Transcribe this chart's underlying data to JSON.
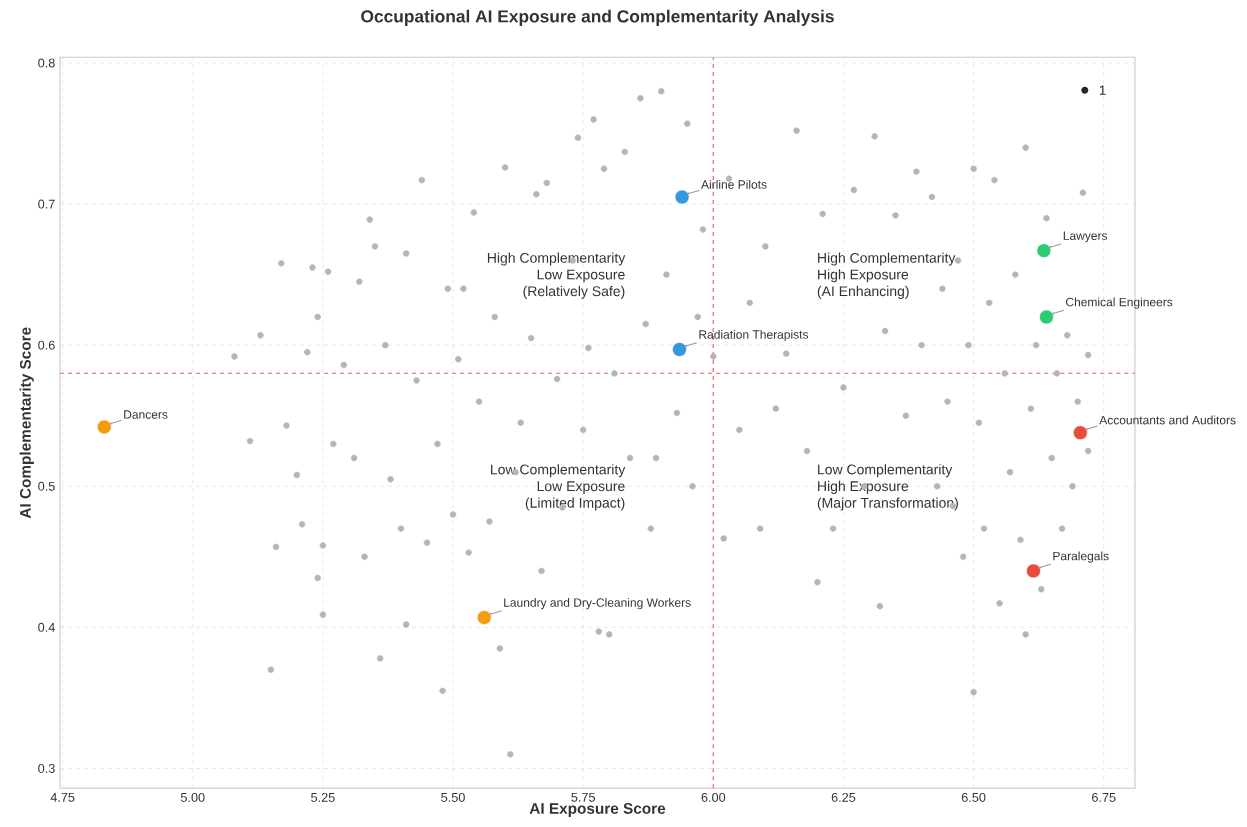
{
  "chart_data": {
    "type": "scatter",
    "title": "Occupational AI Exposure and Complementarity Analysis",
    "xlabel": "AI Exposure Score",
    "ylabel": "AI Complementarity Score",
    "xlim": [
      4.745,
      6.81
    ],
    "ylim": [
      0.286,
      0.804
    ],
    "xticks": [
      {
        "value": 4.75,
        "label": "4.75"
      },
      {
        "value": 5,
        "label": "5.00"
      },
      {
        "value": 5.25,
        "label": "5.25"
      },
      {
        "value": 5.5,
        "label": "5.50"
      },
      {
        "value": 5.75,
        "label": "5.75"
      },
      {
        "value": 6,
        "label": "6.00"
      },
      {
        "value": 6.25,
        "label": "6.25"
      },
      {
        "value": 6.5,
        "label": "6.50"
      },
      {
        "value": 6.75,
        "label": "6.75"
      }
    ],
    "yticks": [
      0.3,
      0.4,
      0.5,
      0.6,
      0.7,
      0.8
    ],
    "grid": true,
    "ref_lines": [
      {
        "axis": "x",
        "value": 6.0,
        "color": "#f08080",
        "line_style": "dashed"
      },
      {
        "axis": "y",
        "value": 0.58,
        "color": "#f08080",
        "line_style": "dashed"
      }
    ],
    "series": [
      {
        "color": "#b5b5b5",
        "x": [
          5.08,
          5.11,
          5.13,
          5.15,
          5.16,
          5.17,
          5.18,
          5.2,
          5.21,
          5.22,
          5.23,
          5.24,
          5.24,
          5.25,
          5.25,
          5.26,
          5.27,
          5.29,
          5.31,
          5.32,
          5.33,
          5.34,
          5.35,
          5.36,
          5.37,
          5.38,
          5.4,
          5.41,
          5.41,
          5.43,
          5.44,
          5.45,
          5.47,
          5.48,
          5.49,
          5.5,
          5.51,
          5.52,
          5.53,
          5.54,
          5.55,
          5.57,
          5.58,
          5.59,
          5.6,
          5.61,
          5.62,
          5.63,
          5.65,
          5.66,
          5.67,
          5.68,
          5.7,
          5.71,
          5.73,
          5.74,
          5.75,
          5.76,
          5.77,
          5.78,
          5.79,
          5.8,
          5.81,
          5.83,
          5.84,
          5.86,
          5.87,
          5.88,
          5.89,
          5.9,
          5.91,
          5.93,
          5.95,
          5.96,
          5.97,
          5.98,
          6.0,
          6.02,
          6.03,
          6.05,
          6.07,
          6.09,
          6.1,
          6.12,
          6.14,
          6.16,
          6.18,
          6.2,
          6.21,
          6.23,
          6.25,
          6.27,
          6.29,
          6.31,
          6.32,
          6.33,
          6.35,
          6.37,
          6.39,
          6.4,
          6.42,
          6.43,
          6.44,
          6.45,
          6.46,
          6.47,
          6.48,
          6.49,
          6.5,
          6.5,
          6.51,
          6.52,
          6.53,
          6.54,
          6.55,
          6.56,
          6.57,
          6.58,
          6.59,
          6.6,
          6.6,
          6.61,
          6.62,
          6.63,
          6.64,
          6.65,
          6.66,
          6.67,
          6.68,
          6.69,
          6.7,
          6.71,
          6.72,
          6.72
        ],
        "values": [
          0.592,
          0.532,
          0.607,
          0.37,
          0.457,
          0.658,
          0.543,
          0.508,
          0.473,
          0.595,
          0.655,
          0.435,
          0.62,
          0.458,
          0.409,
          0.652,
          0.53,
          0.586,
          0.52,
          0.645,
          0.45,
          0.689,
          0.67,
          0.378,
          0.6,
          0.505,
          0.47,
          0.665,
          0.402,
          0.575,
          0.717,
          0.46,
          0.53,
          0.355,
          0.64,
          0.48,
          0.59,
          0.64,
          0.453,
          0.694,
          0.56,
          0.475,
          0.62,
          0.385,
          0.726,
          0.31,
          0.51,
          0.545,
          0.605,
          0.707,
          0.44,
          0.715,
          0.576,
          0.485,
          0.66,
          0.747,
          0.54,
          0.598,
          0.76,
          0.397,
          0.725,
          0.395,
          0.58,
          0.737,
          0.52,
          0.775,
          0.615,
          0.47,
          0.52,
          0.78,
          0.65,
          0.552,
          0.757,
          0.5,
          0.62,
          0.682,
          0.592,
          0.463,
          0.718,
          0.54,
          0.63,
          0.47,
          0.67,
          0.555,
          0.594,
          0.752,
          0.525,
          0.432,
          0.693,
          0.47,
          0.57,
          0.71,
          0.5,
          0.748,
          0.415,
          0.61,
          0.692,
          0.55,
          0.723,
          0.6,
          0.705,
          0.5,
          0.64,
          0.56,
          0.486,
          0.66,
          0.45,
          0.6,
          0.354,
          0.725,
          0.545,
          0.47,
          0.63,
          0.717,
          0.417,
          0.58,
          0.51,
          0.65,
          0.462,
          0.74,
          0.395,
          0.555,
          0.6,
          0.427,
          0.69,
          0.52,
          0.58,
          0.47,
          0.607,
          0.5,
          0.56,
          0.708,
          0.593,
          0.525
        ]
      },
      {
        "color": "#3498db",
        "x": [
          5.94,
          5.935
        ],
        "values": [
          0.705,
          0.597
        ]
      },
      {
        "color": "#2ecc71",
        "x": [
          6.635,
          6.64
        ],
        "values": [
          0.667,
          0.62
        ]
      },
      {
        "color": "#e74c3c",
        "x": [
          6.705,
          6.615
        ],
        "values": [
          0.538,
          0.44
        ]
      },
      {
        "color": "#f39c12",
        "x": [
          4.83,
          5.56
        ],
        "values": [
          0.542,
          0.407
        ]
      }
    ],
    "annotations": [
      "High Complementarity",
      "Low Exposure",
      "(Relatively Safe)",
      "High Complementarity",
      "High Exposure",
      "(AI Enhancing)",
      "Low Complementarity",
      "Low Exposure",
      "(Limited Impact)",
      "Low Complementarity",
      "High Exposure",
      "(Major Transformation)",
      "1",
      {
        "text": "Airline Pilots",
        "x": 5.94,
        "y": 0.705
      },
      {
        "text": "Radiation Therapists",
        "x": 5.935,
        "y": 0.597
      },
      {
        "text": "Lawyers",
        "x": 6.635,
        "y": 0.667
      },
      {
        "text": "Chemical Engineers",
        "x": 6.64,
        "y": 0.62
      },
      {
        "text": "Accountants and Auditors",
        "x": 6.705,
        "y": 0.538
      },
      {
        "text": "Paralegals",
        "x": 6.615,
        "y": 0.44
      },
      {
        "text": "Dancers",
        "x": 4.83,
        "y": 0.542
      },
      {
        "text": "Laundry and Dry-Cleaning Workers",
        "x": 5.56,
        "y": 0.407
      }
    ]
  }
}
